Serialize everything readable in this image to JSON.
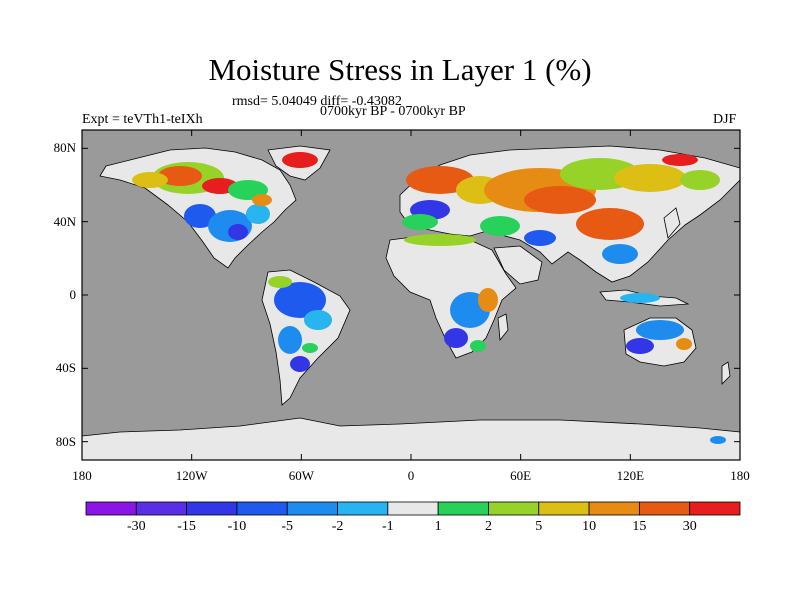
{
  "title": "Moisture Stress in Layer 1 (%)",
  "stats_line": "rmsd= 5.04049 diff= -0.43082",
  "experiment": "Expt = teVTh1-teIXh",
  "period": "0700kyr BP - 0700kyr BP",
  "season": "DJF",
  "chart_data": {
    "type": "heatmap",
    "title": "Moisture Stress in Layer 1 (%)",
    "x_ticks": [
      "180",
      "120W",
      "60W",
      "0",
      "60E",
      "120E",
      "180"
    ],
    "y_ticks": [
      "80N",
      "40N",
      "0",
      "40S",
      "80S"
    ],
    "xlim": [
      -180,
      180
    ],
    "ylim": [
      -90,
      90
    ],
    "colorbar": {
      "labels": [
        "-30",
        "-15",
        "-10",
        "-5",
        "-2",
        "-1",
        "1",
        "2",
        "5",
        "10",
        "15",
        "30"
      ],
      "colors": [
        "#8b14e6",
        "#5a2ee6",
        "#3236e6",
        "#1e5aee",
        "#1e8cee",
        "#28b4ee",
        "#e8e8e8",
        "#28d25a",
        "#96d228",
        "#dcbe14",
        "#e68c14",
        "#e65a14",
        "#e61e1e"
      ]
    },
    "ocean_color": "#9a9a9a",
    "missing_color": "#e8e8e8"
  }
}
